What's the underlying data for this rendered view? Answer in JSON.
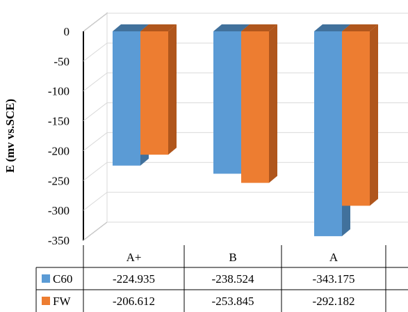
{
  "chart_data": {
    "type": "bar",
    "categories": [
      "A+",
      "B",
      "A"
    ],
    "series": [
      {
        "name": "C60",
        "values": [
          -224.935,
          -238.524,
          -343.175
        ],
        "color": "#5b9bd5"
      },
      {
        "name": "FW",
        "values": [
          -206.612,
          -253.845,
          -292.182
        ],
        "color": "#ed7d31"
      }
    ],
    "table_values": [
      [
        "-224.935",
        "-238.524",
        "-343.175"
      ],
      [
        "-206.612",
        "-253.845",
        "-292.182"
      ]
    ],
    "ylabel": "E (mv  vs.SCE)",
    "ylim": [
      -350,
      0
    ],
    "yticks": [
      0,
      -50,
      -100,
      -150,
      -200,
      -250,
      -300,
      -350
    ],
    "grid": true,
    "three_d": true,
    "data_table": true
  }
}
